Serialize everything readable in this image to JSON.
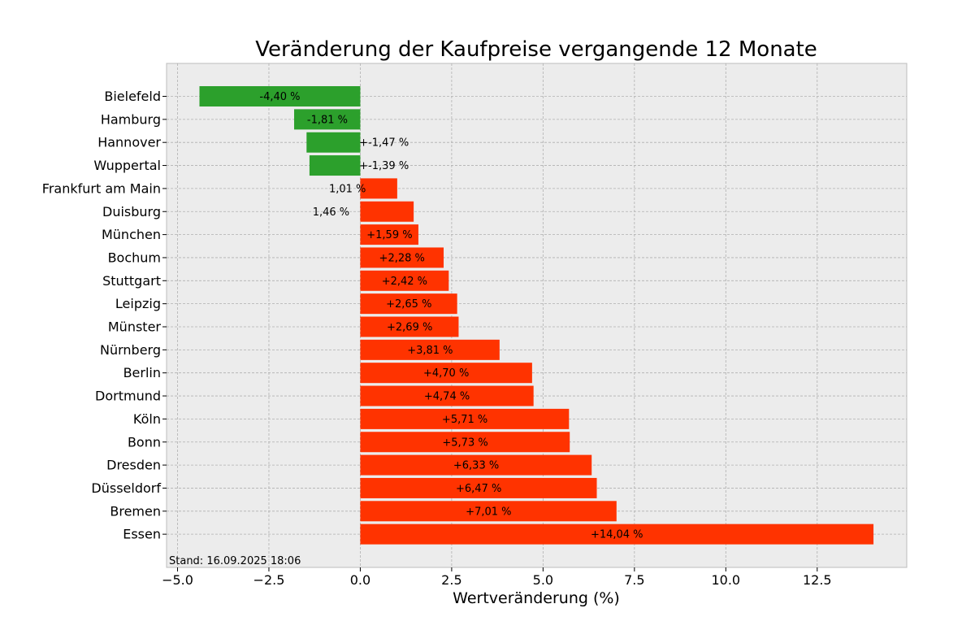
{
  "chart_data": {
    "type": "bar",
    "orientation": "horizontal",
    "title": "Veränderung der Kaufpreise vergangende 12 Monate",
    "xlabel": "Wertveränderung (%)",
    "ylabel": "",
    "xlim": [
      -5.3,
      14.95
    ],
    "xticks": [
      -5.0,
      -2.5,
      0.0,
      2.5,
      5.0,
      7.5,
      10.0,
      12.5
    ],
    "xtick_labels": [
      "−5.0",
      "−2.5",
      "0.0",
      "2.5",
      "5.0",
      "7.5",
      "10.0",
      "12.5"
    ],
    "grid": true,
    "footnote": "Stand: 16.09.2025 18:06",
    "colors": {
      "negative": "#2ca02c",
      "positive": "#ff3300",
      "background": "#ececec",
      "grid": "#b0b0b0"
    },
    "categories": [
      "Bielefeld",
      "Hamburg",
      "Hannover",
      "Wuppertal",
      "Frankfurt am Main",
      "Duisburg",
      "München",
      "Bochum",
      "Stuttgart",
      "Leipzig",
      "Münster",
      "Nürnberg",
      "Berlin",
      "Dortmund",
      "Köln",
      "Bonn",
      "Dresden",
      "Düsseldorf",
      "Bremen",
      "Essen"
    ],
    "values": [
      -4.4,
      -1.81,
      -1.47,
      -1.39,
      1.01,
      1.46,
      1.59,
      2.28,
      2.42,
      2.65,
      2.69,
      3.81,
      4.7,
      4.74,
      5.71,
      5.73,
      6.33,
      6.47,
      7.01,
      14.04
    ],
    "data_labels": [
      "-4,40 %",
      "-1,81 %",
      "+-1,47 %",
      "+-1,39 %",
      "1,01 %",
      "1,46 %",
      "+1,59 %",
      "+2,28 %",
      "+2,42 %",
      "+2,65 %",
      "+2,69 %",
      "+3,81 %",
      "+4,70 %",
      "+4,74 %",
      "+5,71 %",
      "+5,73 %",
      "+6,33 %",
      "+6,47 %",
      "+7,01 %",
      "+14,04 %"
    ],
    "data_label_positions": [
      -2.2,
      -0.9,
      0.65,
      0.65,
      -0.35,
      -0.8,
      0.8,
      1.14,
      1.21,
      1.33,
      1.35,
      1.91,
      2.35,
      2.37,
      2.86,
      2.87,
      3.17,
      3.24,
      3.51,
      7.02
    ]
  }
}
